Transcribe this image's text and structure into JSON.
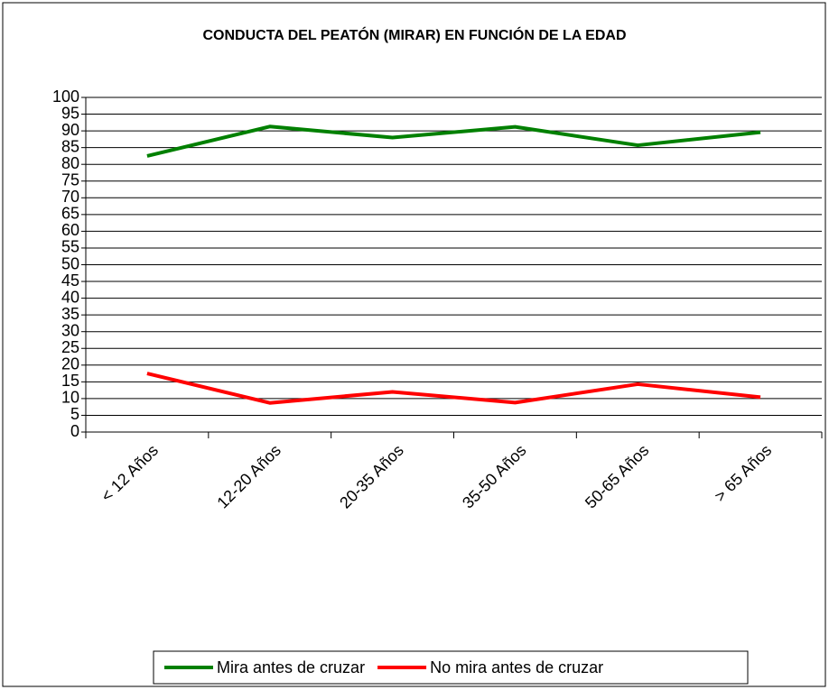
{
  "chart_data": {
    "type": "line",
    "title": "CONDUCTA DEL PEATÓN (MIRAR) EN FUNCIÓN DE LA EDAD",
    "categories": [
      "< 12 Años",
      "12-20 Años",
      "20-35 Años",
      "35-50 Años",
      "50-65 Años",
      "> 65 Años"
    ],
    "series": [
      {
        "name": "Mira antes de cruzar",
        "color": "#008000",
        "values": [
          82.5,
          91.3,
          88,
          91.2,
          85.7,
          89.6
        ]
      },
      {
        "name": "No mira antes de cruzar",
        "color": "#ff0000",
        "values": [
          17.5,
          8.7,
          12,
          8.8,
          14.3,
          10.4
        ]
      }
    ],
    "ylim": [
      0,
      100
    ],
    "yticks": [
      0,
      5,
      10,
      15,
      20,
      25,
      30,
      35,
      40,
      45,
      50,
      55,
      60,
      65,
      70,
      75,
      80,
      85,
      90,
      95,
      100
    ],
    "grid": true,
    "legend": "bottom"
  }
}
